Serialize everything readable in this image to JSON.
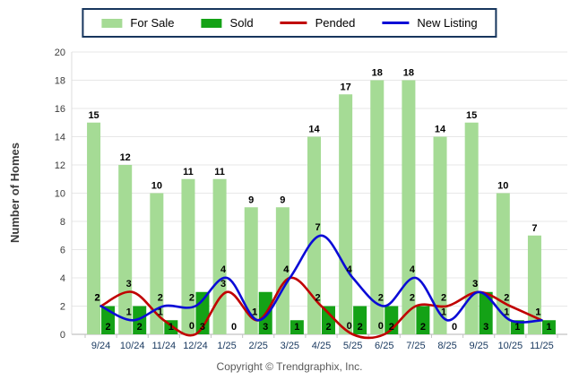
{
  "chart_data": {
    "type": "bar",
    "title": "",
    "categories": [
      "9/24",
      "10/24",
      "11/24",
      "12/24",
      "1/25",
      "2/25",
      "3/25",
      "4/25",
      "5/25",
      "6/25",
      "7/25",
      "8/25",
      "9/25",
      "10/25",
      "11/25"
    ],
    "series": [
      {
        "name": "For Sale",
        "type": "bar",
        "color": "#a5db95",
        "values": [
          15,
          12,
          10,
          11,
          11,
          9,
          9,
          14,
          17,
          18,
          18,
          14,
          15,
          10,
          7
        ]
      },
      {
        "name": "Sold",
        "type": "bar",
        "color": "#14a216",
        "values": [
          2,
          2,
          1,
          3,
          0,
          3,
          1,
          2,
          2,
          2,
          2,
          0,
          3,
          1,
          1
        ]
      },
      {
        "name": "Pended",
        "type": "line",
        "color": "#c00000",
        "values": [
          2,
          3,
          1,
          0,
          3,
          1,
          4,
          2,
          0,
          0,
          2,
          2,
          3,
          2,
          1
        ]
      },
      {
        "name": "New Listing",
        "type": "line",
        "color": "#0b0bd6",
        "values": [
          2,
          1,
          2,
          2,
          4,
          1,
          4,
          7,
          4,
          2,
          4,
          1,
          3,
          1,
          1
        ]
      }
    ],
    "ylabel": "Number of Homes",
    "xlabel": "",
    "ylim": [
      0,
      20
    ],
    "ytick_step": 2,
    "grid": true,
    "legend_position": "top",
    "colors": {
      "grid": "#e7e7e7",
      "axis": "#b3b3b3",
      "tick_label_x": "#17375e",
      "tick_label_y": "#3c3c3c",
      "data_label": "#000000"
    }
  },
  "footer": {
    "copyright": "Copyright © Trendgraphix, Inc."
  }
}
